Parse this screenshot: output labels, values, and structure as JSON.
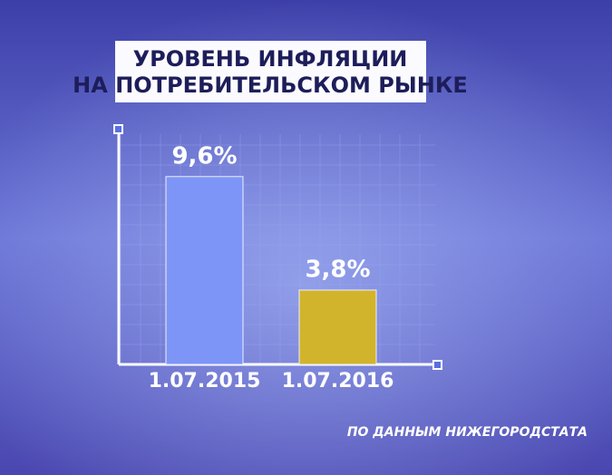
{
  "chart_data": {
    "type": "bar",
    "title": [
      "УРОВЕНЬ ИНФЛЯЦИИ",
      "НА ПОТРЕБИТЕЛЬСКОМ РЫНКЕ"
    ],
    "categories": [
      "1.07.2015",
      "1.07.2016"
    ],
    "values": [
      9.6,
      3.8
    ],
    "value_labels": [
      "9,6%",
      "3,8%"
    ],
    "colors": [
      "#7d95f6",
      "#d2b42c"
    ],
    "ylim": [
      0,
      12
    ],
    "source": "ПО ДАННЫМ НИЖЕГОРОДСТАТА"
  }
}
